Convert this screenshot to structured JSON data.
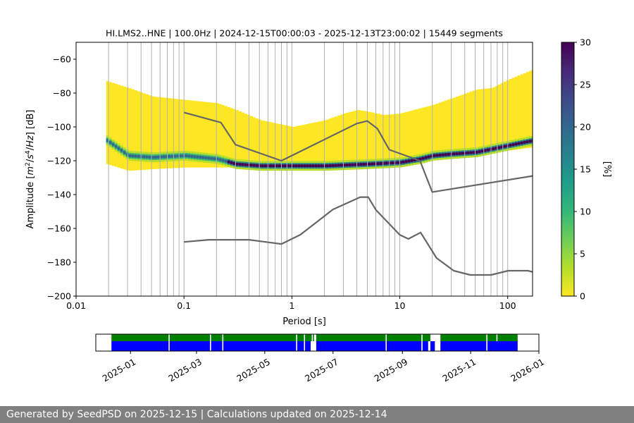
{
  "chart_data": [
    {
      "type": "heatmap",
      "title": "HI.LMS2..HNE | 100.0Hz | 2024-12-15T00:00:03 - 2025-12-13T23:00:02 | 15449 segments",
      "xlabel": "Period [s]",
      "ylabel_parts": [
        "Amplitude [",
        "m",
        "2",
        "/",
        "s",
        "4",
        "/",
        "Hz",
        "] [dB]"
      ],
      "x_scale": "log",
      "xlim": [
        0.01,
        170
      ],
      "ylim": [
        -200,
        -50
      ],
      "x_ticks": [
        {
          "value": 0.01,
          "label": "0.01"
        },
        {
          "value": 0.1,
          "label": "0.1"
        },
        {
          "value": 1,
          "label": "1"
        },
        {
          "value": 10,
          "label": "10"
        },
        {
          "value": 100,
          "label": "100"
        }
      ],
      "y_ticks": [
        {
          "value": -60,
          "label": "−60"
        },
        {
          "value": -80,
          "label": "−80"
        },
        {
          "value": -100,
          "label": "−100"
        },
        {
          "value": -120,
          "label": "−120"
        },
        {
          "value": -140,
          "label": "−140"
        },
        {
          "value": -160,
          "label": "−160"
        },
        {
          "value": -180,
          "label": "−180"
        },
        {
          "value": -200,
          "label": "−200"
        }
      ],
      "grid": "vertical lines at period bins",
      "grid_x": [
        0.02,
        0.03,
        0.04,
        0.05,
        0.06,
        0.07,
        0.08,
        0.09,
        0.1,
        0.2,
        0.3,
        0.4,
        0.5,
        0.6,
        0.7,
        0.8,
        0.9,
        1,
        2,
        3,
        4,
        5,
        6,
        7,
        8,
        9,
        10,
        20,
        30,
        40,
        50,
        60,
        70,
        80,
        90,
        100
      ],
      "colorbar": {
        "label": "[%]",
        "range": [
          0,
          30
        ],
        "ticks": [
          {
            "value": 0,
            "label": "0"
          },
          {
            "value": 5,
            "label": "5"
          },
          {
            "value": 10,
            "label": "10"
          },
          {
            "value": 15,
            "label": "15"
          },
          {
            "value": 20,
            "label": "20"
          },
          {
            "value": 25,
            "label": "25"
          },
          {
            "value": 30,
            "label": "30"
          }
        ],
        "colormap": "viridis_r",
        "colors": [
          "#fde725",
          "#b5de2b",
          "#6ece58",
          "#35b779",
          "#1f9e89",
          "#26828e",
          "#31688e",
          "#3e4989",
          "#482878",
          "#440154"
        ]
      },
      "density_envelope": {
        "period": [
          0.019,
          0.03,
          0.05,
          0.1,
          0.2,
          0.3,
          0.5,
          1,
          2,
          3,
          4,
          5,
          7,
          10,
          15,
          20,
          30,
          50,
          70,
          100,
          170
        ],
        "upper_db": [
          -73,
          -77,
          -82,
          -84,
          -86,
          -90,
          -96,
          -100,
          -96,
          -92,
          -90,
          -91,
          -93,
          -92,
          -89,
          -87,
          -83,
          -78,
          -77,
          -72,
          -66
        ],
        "lower_db": [
          -122,
          -126,
          -125,
          -124,
          -124,
          -124,
          -124,
          -124,
          -123,
          -122,
          -122,
          -122,
          -121,
          -120,
          -119,
          -117,
          -116,
          -116,
          -114,
          -114,
          -112
        ]
      },
      "mode_line": {
        "period": [
          0.019,
          0.03,
          0.05,
          0.1,
          0.2,
          0.3,
          0.5,
          1,
          2,
          5,
          10,
          15,
          20,
          30,
          50,
          100,
          170
        ],
        "db": [
          -108,
          -117,
          -118,
          -117,
          -119,
          -122,
          -123,
          -123,
          -123,
          -122,
          -121,
          -119,
          -117,
          -116,
          -115,
          -111,
          -108
        ]
      },
      "series": [
        {
          "period": [
            0.1,
            0.22,
            0.3,
            0.8,
            4.0,
            5.0,
            6.2,
            8.0,
            15.4,
            20.0,
            170
          ],
          "db": [
            -91.5,
            -97.4,
            -110.5,
            -120.0,
            -98.0,
            -96.5,
            -101.0,
            -113.5,
            -120.0,
            -138.5,
            -129.0
          ]
        },
        {
          "period": [
            0.1,
            0.17,
            0.4,
            0.8,
            1.2,
            2.4,
            4.3,
            5.1,
            6.0,
            10.0,
            12.0,
            15.6,
            21.9,
            31.6,
            45.0,
            70.0,
            101.0,
            154.0,
            170
          ],
          "db": [
            -168.0,
            -166.7,
            -166.7,
            -169.2,
            -163.7,
            -148.8,
            -141.5,
            -141.5,
            -149.0,
            -163.8,
            -166.2,
            -162.4,
            -177.5,
            -185.0,
            -187.5,
            -187.5,
            -185.0,
            -185.0,
            -185.7
          ]
        }
      ]
    },
    {
      "type": "timeline",
      "x_ticks": [
        "2025-01",
        "2025-03",
        "2025-05",
        "2025-07",
        "2025-09",
        "2025-11",
        "2026-01"
      ],
      "xlim": [
        "2024-12-01",
        "2026-01-01"
      ],
      "rows": [
        {
          "color": "#008000",
          "segments": [
            [
              "2024-12-15",
              "2025-02-04"
            ],
            [
              "2025-02-05",
              "2025-03-13"
            ],
            [
              "2025-03-14",
              "2025-03-24"
            ],
            [
              "2025-03-25",
              "2025-05-29"
            ],
            [
              "2025-05-30",
              "2025-06-05"
            ],
            [
              "2025-06-06",
              "2025-06-12"
            ],
            [
              "2025-06-13",
              "2025-06-14"
            ],
            [
              "2025-06-16",
              "2025-08-17"
            ],
            [
              "2025-08-18",
              "2025-09-18"
            ],
            [
              "2025-09-19",
              "2025-09-26"
            ],
            [
              "2025-10-05",
              "2025-11-15"
            ],
            [
              "2025-11-16",
              "2025-11-24"
            ],
            [
              "2025-11-25",
              "2025-12-13"
            ]
          ]
        },
        {
          "color": "#0000ff",
          "segments": [
            [
              "2024-12-15",
              "2025-02-04"
            ],
            [
              "2025-02-05",
              "2025-03-13"
            ],
            [
              "2025-03-14",
              "2025-03-24"
            ],
            [
              "2025-03-25",
              "2025-05-29"
            ],
            [
              "2025-05-30",
              "2025-06-05"
            ],
            [
              "2025-06-06",
              "2025-06-11"
            ],
            [
              "2025-06-16",
              "2025-08-17"
            ],
            [
              "2025-08-18",
              "2025-09-18"
            ],
            [
              "2025-09-19",
              "2025-09-24"
            ],
            [
              "2025-09-26",
              "2025-09-30"
            ],
            [
              "2025-10-05",
              "2025-11-15"
            ],
            [
              "2025-11-16",
              "2025-12-13"
            ]
          ]
        }
      ]
    }
  ],
  "footer": {
    "text": "Generated by SeedPSD on 2025-12-15 | Calculations updated on 2025-12-14"
  }
}
